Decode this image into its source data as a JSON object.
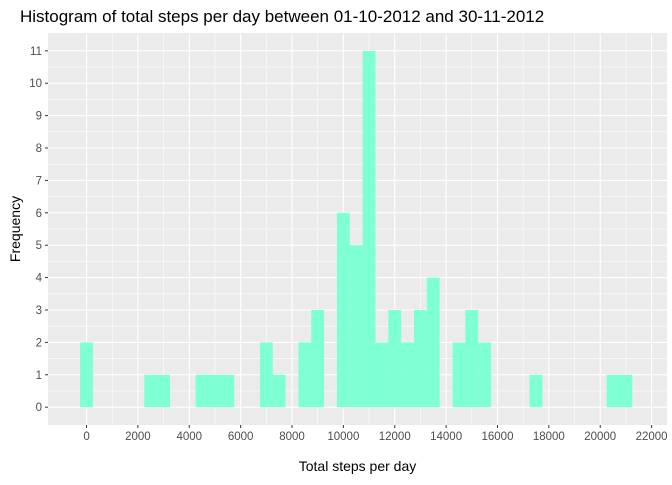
{
  "chart_data": {
    "type": "bar",
    "title": "Histogram of total steps per day between 01-10-2012 and 30-11-2012",
    "xlabel": "Total steps per day",
    "ylabel": "Frequency",
    "xlim": [
      -1500,
      22600
    ],
    "ylim": [
      -0.55,
      11.55
    ],
    "x_ticks": [
      0,
      2000,
      4000,
      6000,
      8000,
      10000,
      12000,
      14000,
      16000,
      18000,
      20000,
      22000
    ],
    "x_tick_labels": [
      "0",
      "2000",
      "4000",
      "6000",
      "8000",
      "10000",
      "12000",
      "14000",
      "16000",
      "18000",
      "20000",
      "22000"
    ],
    "y_ticks": [
      0,
      1,
      2,
      3,
      4,
      5,
      6,
      7,
      8,
      9,
      10,
      11
    ],
    "y_tick_labels": [
      "0",
      "1",
      "2",
      "3",
      "4",
      "5",
      "6",
      "7",
      "8",
      "9",
      "10",
      "11"
    ],
    "bin_width": 500,
    "bin_starts": [
      -250,
      2250,
      2750,
      4250,
      4750,
      5250,
      6750,
      7250,
      8250,
      8750,
      9750,
      10250,
      10750,
      11250,
      11750,
      12250,
      12750,
      13250,
      14250,
      14750,
      15250,
      17250,
      20250,
      20750
    ],
    "values": [
      2,
      1,
      1,
      1,
      1,
      1,
      2,
      1,
      2,
      3,
      6,
      5,
      11,
      2,
      3,
      2,
      3,
      4,
      2,
      3,
      2,
      1,
      1,
      1
    ],
    "grid": true,
    "colors": {
      "panel_background": "#EBEBEB",
      "grid_major": "#FFFFFF",
      "bar_fill": "#7FFFD4",
      "axis_text": "#4D4D4D",
      "tick": "#333333",
      "title": "#000000"
    }
  }
}
